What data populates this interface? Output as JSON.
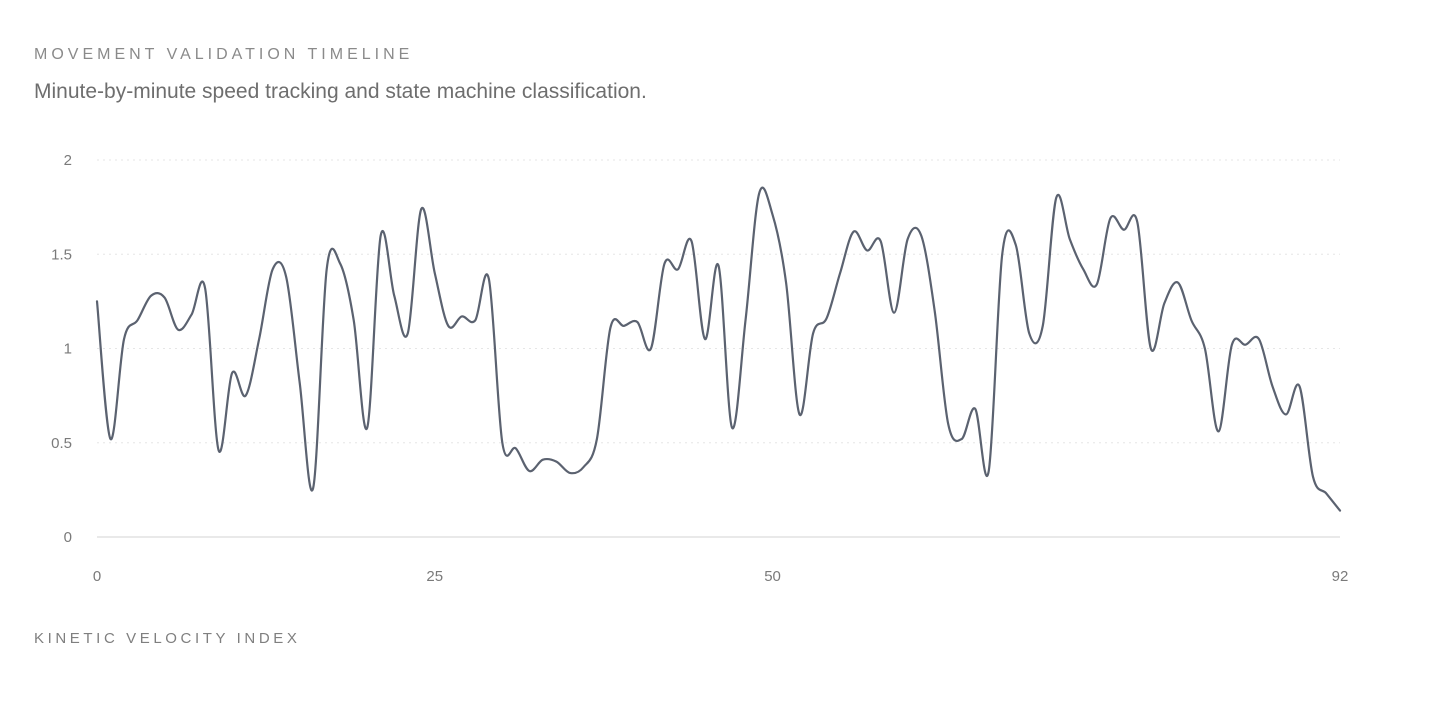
{
  "header": {
    "title": "MOVEMENT VALIDATION TIMELINE",
    "subtitle": "Minute-by-minute speed tracking and state machine classification."
  },
  "footer": {
    "label": "KINETIC VELOCITY INDEX"
  },
  "colors": {
    "line": "#5b6270",
    "grid": "#e6e6e6",
    "axis": "#dcdcdc",
    "tick_text": "#7a7a7a"
  },
  "chart_data": {
    "type": "line",
    "xlabel": "",
    "ylabel": "",
    "xlim": [
      0,
      92
    ],
    "ylim": [
      0,
      2
    ],
    "x_ticks": [
      0,
      25,
      50,
      92
    ],
    "x_tick_labels": [
      "0",
      "25",
      "50",
      "92"
    ],
    "y_ticks": [
      0,
      0.5,
      1,
      1.5,
      2
    ],
    "y_tick_labels": [
      "0",
      "0.5",
      "1",
      "1.5",
      "2"
    ],
    "grid": "horizontal dotted",
    "legend": "none",
    "series": [
      {
        "values": [
          1.25,
          0.52,
          1.05,
          1.15,
          1.28,
          1.27,
          1.1,
          1.18,
          1.32,
          0.46,
          0.87,
          0.75,
          1.05,
          1.42,
          1.38,
          0.82,
          0.26,
          1.42,
          1.45,
          1.15,
          0.58,
          1.6,
          1.28,
          1.08,
          1.74,
          1.4,
          1.12,
          1.17,
          1.15,
          1.37,
          0.5,
          0.47,
          0.35,
          0.41,
          0.4,
          0.34,
          0.37,
          0.52,
          1.11,
          1.12,
          1.14,
          1.0,
          1.45,
          1.42,
          1.57,
          1.05,
          1.44,
          0.58,
          1.15,
          1.82,
          1.71,
          1.35,
          0.65,
          1.08,
          1.16,
          1.4,
          1.62,
          1.52,
          1.57,
          1.19,
          1.58,
          1.6,
          1.2,
          0.6,
          0.52,
          0.68,
          0.35,
          1.5,
          1.55,
          1.08,
          1.12,
          1.8,
          1.58,
          1.42,
          1.34,
          1.69,
          1.63,
          1.67,
          1.0,
          1.24,
          1.35,
          1.15,
          1.0,
          0.56,
          1.02,
          1.02,
          1.05,
          0.8,
          0.65,
          0.8,
          0.32,
          0.23,
          0.14
        ]
      }
    ]
  }
}
